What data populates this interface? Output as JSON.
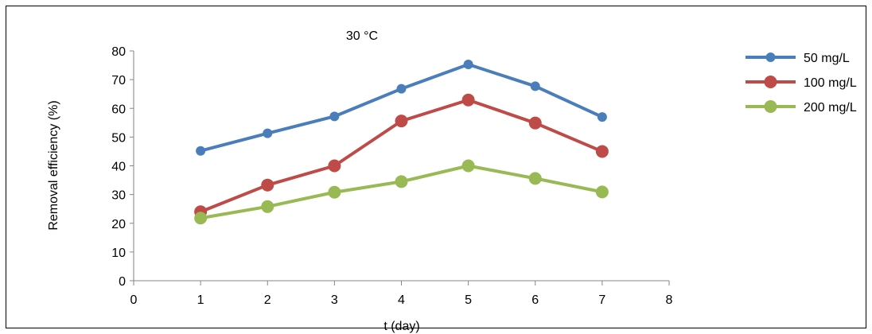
{
  "chart_data": {
    "type": "line",
    "title": "30 °C",
    "xlabel": "t (day)",
    "ylabel": "Removal efficiency (%)",
    "xlim": [
      0,
      8
    ],
    "ylim": [
      0,
      80
    ],
    "xticks": [
      "0",
      "1",
      "2",
      "3",
      "4",
      "5",
      "6",
      "7",
      "8"
    ],
    "yticks": [
      "0",
      "10",
      "20",
      "30",
      "40",
      "50",
      "60",
      "70",
      "80"
    ],
    "grid": false,
    "legend_position": "right",
    "x": [
      1,
      2,
      3,
      4,
      5,
      6,
      7
    ],
    "series": [
      {
        "name": "50 mg/L",
        "color": "#4A7EBB",
        "values": [
          45.2,
          51.3,
          57.2,
          66.8,
          75.3,
          67.7,
          57.0
        ]
      },
      {
        "name": "100 mg/L",
        "color": "#BE4B48",
        "values": [
          24.0,
          33.3,
          40.0,
          55.6,
          62.9,
          54.9,
          45.0
        ]
      },
      {
        "name": "200 mg/L",
        "color": "#98B954",
        "values": [
          21.8,
          25.8,
          30.8,
          34.5,
          40.0,
          35.6,
          30.9
        ]
      }
    ]
  }
}
